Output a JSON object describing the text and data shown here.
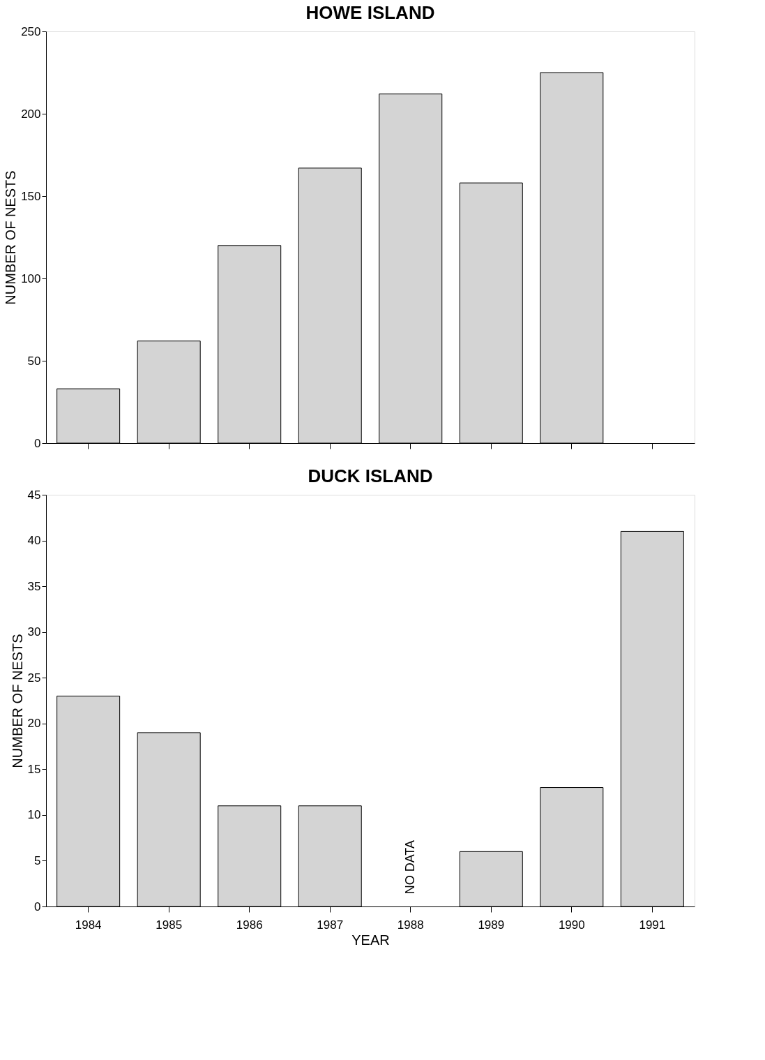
{
  "chart_data": [
    {
      "type": "bar",
      "title": "HOWE ISLAND",
      "ylabel": "NUMBER OF NESTS",
      "categories": [
        "1984",
        "1985",
        "1986",
        "1987",
        "1988",
        "1989",
        "1990",
        "1991"
      ],
      "series": [
        {
          "color": "#d4d4d4",
          "values": [
            33,
            62,
            120,
            167,
            212,
            158,
            225,
            null
          ]
        }
      ],
      "ylim": [
        0,
        250
      ],
      "yticks": [
        0,
        50,
        100,
        150,
        200,
        250
      ],
      "grid": false,
      "tick_labels": "y"
    },
    {
      "type": "bar",
      "title": "DUCK ISLAND",
      "xlabel": "YEAR",
      "ylabel": "NUMBER OF NESTS",
      "categories": [
        "1984",
        "1985",
        "1986",
        "1987",
        "1988",
        "1989",
        "1990",
        "1991"
      ],
      "series": [
        {
          "color": "#d4d4d4",
          "values": [
            23,
            19,
            11,
            11,
            null,
            6,
            13,
            41
          ]
        }
      ],
      "ylim": [
        0,
        45
      ],
      "yticks": [
        0,
        5,
        10,
        15,
        20,
        25,
        30,
        35,
        40,
        45
      ],
      "grid": false,
      "annotations": [
        "NO DATA"
      ]
    }
  ]
}
